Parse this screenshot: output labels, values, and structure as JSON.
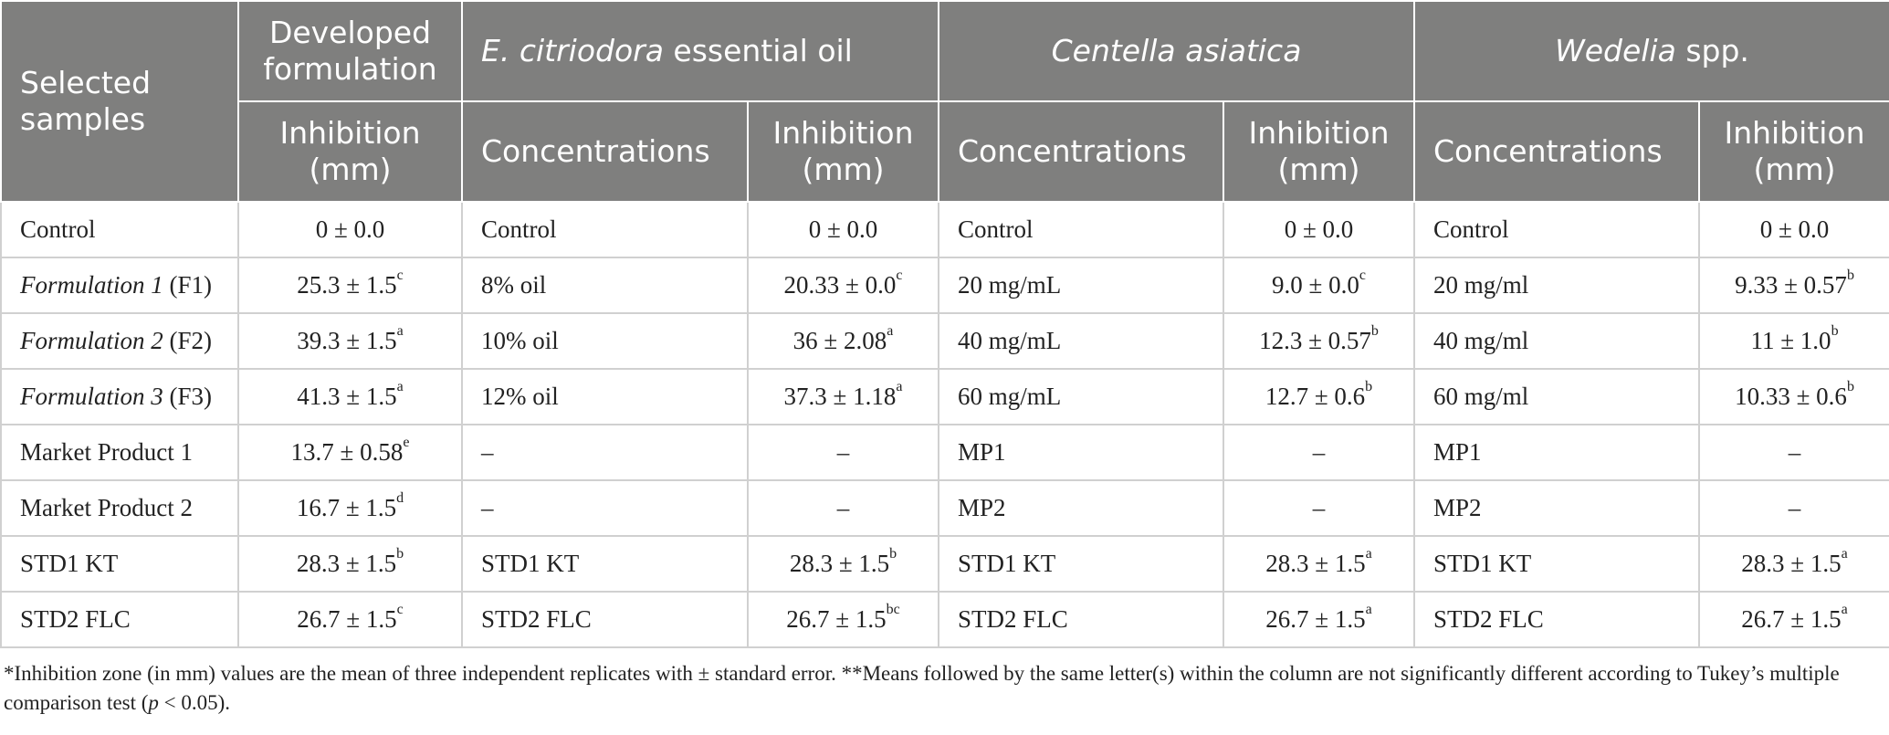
{
  "table": {
    "header": [
      [
        "Selected samples",
        "Developed formulation",
        {
          "italic": "E. citriodora",
          "text": " essential oil"
        },
        {
          "italic": "Centella asiatica"
        },
        {
          "italic": "Wedelia",
          "text": " spp."
        }
      ],
      [
        "Inhibition (mm)",
        "Concentrations",
        "Inhibition (mm)",
        "Concentrations",
        "Inhibition (mm)",
        "Concentrations",
        "Inhibition (mm)"
      ]
    ],
    "rows": [
      [
        "Control",
        "0 ± 0.0",
        "Control",
        "0 ± 0.0",
        "Control",
        "0 ± 0.0",
        "Control",
        "0 ± 0.0"
      ],
      [
        {
          "italic": "Formulation 1",
          "text": " (F1)"
        },
        {
          "text": "25.3 ± 1.5",
          "sup": "c"
        },
        "8% oil",
        {
          "text": "20.33 ± 0.0",
          "sup": "c"
        },
        "20 mg/mL",
        {
          "text": "9.0 ± 0.0",
          "sup": "c"
        },
        "20 mg/ml",
        {
          "text": "9.33 ± 0.57",
          "sup": "b"
        }
      ],
      [
        {
          "italic": "Formulation 2",
          "text": " (F2)"
        },
        {
          "text": "39.3 ± 1.5",
          "sup": "a"
        },
        "10% oil",
        {
          "text": "36 ± 2.08",
          "sup": "a"
        },
        "40 mg/mL",
        {
          "text": "12.3 ± 0.57",
          "sup": "b"
        },
        "40 mg/ml",
        {
          "text": "11 ± 1.0",
          "sup": "b"
        }
      ],
      [
        {
          "italic": "Formulation 3",
          "text": " (F3)"
        },
        {
          "text": "41.3 ± 1.5",
          "sup": "a"
        },
        "12% oil",
        {
          "text": "37.3 ± 1.18",
          "sup": "a"
        },
        "60 mg/mL",
        {
          "text": "12.7 ± 0.6",
          "sup": "b"
        },
        "60 mg/ml",
        {
          "text": "10.33 ± 0.6",
          "sup": "b"
        }
      ],
      [
        "Market Product 1",
        {
          "text": "13.7 ± 0.58",
          "sup": "e"
        },
        "–",
        "–",
        "MP1",
        "–",
        "MP1",
        "–"
      ],
      [
        "Market Product 2",
        {
          "text": "16.7 ± 1.5",
          "sup": "d"
        },
        "–",
        "–",
        "MP2",
        "–",
        "MP2",
        "–"
      ],
      [
        "STD1 KT",
        {
          "text": "28.3 ± 1.5",
          "sup": "b"
        },
        "STD1 KT",
        {
          "text": "28.3 ± 1.5",
          "sup": "b"
        },
        "STD1 KT",
        {
          "text": "28.3 ± 1.5",
          "sup": "a"
        },
        "STD1 KT",
        {
          "text": "28.3 ± 1.5",
          "sup": "a"
        }
      ],
      [
        "STD2 FLC",
        {
          "text": "26.7 ± 1.5",
          "sup": "c"
        },
        "STD2 FLC",
        {
          "text": "26.7 ± 1.5",
          "sup": "bc"
        },
        "STD2 FLC",
        {
          "text": "26.7 ± 1.5",
          "sup": "a"
        },
        "STD2 FLC",
        {
          "text": "26.7 ± 1.5",
          "sup": "a"
        }
      ]
    ]
  },
  "footnote": {
    "text": "*Inhibition zone (in mm) values are the mean of three independent replicates with ± standard error. **Means followed by the same letter(s) within the column are not significantly different according to Tukey’s multiple comparison test (",
    "italic": "p",
    "after": " < 0.05)."
  }
}
